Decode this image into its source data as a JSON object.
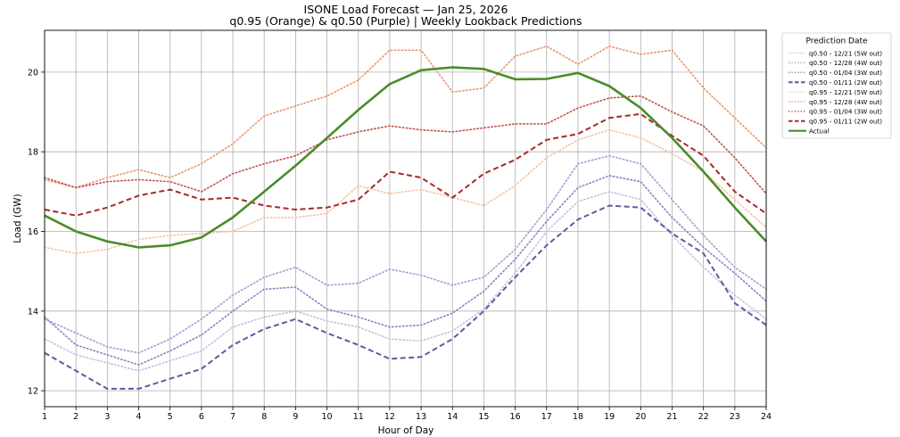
{
  "chart_data": {
    "type": "line",
    "title": "ISONE Load Forecast — Jan 25, 2026",
    "subtitle": "q0.95 (Orange) & q0.50 (Purple) | Weekly Lookback Predictions",
    "xlabel": "Hour of Day",
    "ylabel": "Load (GW)",
    "x": [
      1,
      2,
      3,
      4,
      5,
      6,
      7,
      8,
      9,
      10,
      11,
      12,
      13,
      14,
      15,
      16,
      17,
      18,
      19,
      20,
      21,
      22,
      23,
      24
    ],
    "xlim": [
      1,
      24
    ],
    "ylim": [
      11.6,
      21.05
    ],
    "yticks": [
      12,
      14,
      16,
      18,
      20
    ],
    "grid": true,
    "legend_title": "Prediction Date",
    "legend_position": "outside-right-top",
    "series": [
      {
        "name": "q0.50 - 12/21 (5W out)",
        "color": "#c8bde0",
        "dash": "dotted",
        "width": 1.6,
        "values": [
          13.3,
          12.9,
          12.7,
          12.5,
          12.75,
          13.0,
          13.6,
          13.85,
          14.0,
          13.75,
          13.6,
          13.3,
          13.25,
          13.5,
          14.05,
          14.95,
          16.0,
          16.75,
          17.0,
          16.8,
          15.9,
          15.1,
          14.4,
          13.8
        ]
      },
      {
        "name": "q0.50 - 12/28 (4W out)",
        "color": "#a79ccf",
        "dash": "dotted",
        "width": 1.6,
        "values": [
          13.8,
          13.45,
          13.1,
          12.95,
          13.3,
          13.8,
          14.4,
          14.85,
          15.1,
          14.65,
          14.7,
          15.05,
          14.9,
          14.65,
          14.85,
          15.55,
          16.55,
          17.7,
          17.9,
          17.7,
          16.8,
          15.9,
          15.1,
          14.55
        ]
      },
      {
        "name": "q0.50 - 01/04 (3W out)",
        "color": "#8f7fc2",
        "dash": "dotted",
        "width": 1.6,
        "values": [
          13.85,
          13.15,
          12.9,
          12.65,
          13.0,
          13.4,
          14.0,
          14.55,
          14.6,
          14.05,
          13.85,
          13.6,
          13.65,
          13.95,
          14.5,
          15.3,
          16.25,
          17.1,
          17.4,
          17.25,
          16.35,
          15.6,
          14.95,
          14.25
        ]
      },
      {
        "name": "q0.50 - 01/11 (2W out)",
        "color": "#6a549e",
        "dash": "dashed",
        "width": 2.0,
        "values": [
          12.95,
          12.5,
          12.05,
          12.05,
          12.3,
          12.55,
          13.15,
          13.55,
          13.8,
          13.45,
          13.15,
          12.8,
          12.85,
          13.3,
          14.0,
          14.85,
          15.65,
          16.3,
          16.65,
          16.6,
          15.95,
          15.45,
          14.2,
          13.65
        ]
      },
      {
        "name": "q0.95 - 12/21 (5W out)",
        "color": "#f2c4a0",
        "dash": "dotted",
        "width": 1.6,
        "values": [
          15.6,
          15.45,
          15.55,
          15.8,
          15.9,
          15.95,
          16.0,
          16.35,
          16.35,
          16.45,
          17.15,
          16.95,
          17.05,
          16.85,
          16.65,
          17.15,
          17.85,
          18.3,
          18.55,
          18.35,
          17.95,
          17.5,
          16.8,
          16.1
        ]
      },
      {
        "name": "q0.95 - 12/28 (4W out)",
        "color": "#e8956c",
        "dash": "dotted",
        "width": 1.6,
        "values": [
          17.3,
          17.1,
          17.35,
          17.55,
          17.35,
          17.7,
          18.2,
          18.9,
          19.15,
          19.4,
          19.8,
          20.55,
          20.55,
          19.5,
          19.6,
          20.4,
          20.65,
          20.2,
          20.65,
          20.45,
          20.55,
          19.6,
          18.85,
          18.1
        ]
      },
      {
        "name": "q0.95 - 01/04 (3W out)",
        "color": "#c0504d",
        "dash": "dotted",
        "width": 1.6,
        "values": [
          17.35,
          17.1,
          17.25,
          17.3,
          17.25,
          17.0,
          17.45,
          17.7,
          17.9,
          18.3,
          18.5,
          18.65,
          18.55,
          18.5,
          18.6,
          18.7,
          18.7,
          19.1,
          19.35,
          19.4,
          19.0,
          18.65,
          17.85,
          16.95
        ]
      },
      {
        "name": "q0.95 - 01/11 (2W out)",
        "color": "#a52a2a",
        "dash": "dashed",
        "width": 2.0,
        "values": [
          16.55,
          16.4,
          16.6,
          16.9,
          17.05,
          16.8,
          16.85,
          16.65,
          16.55,
          16.6,
          16.8,
          17.5,
          17.35,
          16.85,
          17.45,
          17.8,
          18.3,
          18.45,
          18.85,
          18.95,
          18.4,
          17.9,
          17.0,
          16.45
        ]
      },
      {
        "name": "Actual",
        "color": "#4a8c2a",
        "dash": "solid",
        "width": 2.6,
        "values": [
          16.4,
          16.0,
          15.75,
          15.6,
          15.65,
          15.85,
          16.35,
          17.0,
          17.65,
          18.35,
          19.05,
          19.7,
          20.05,
          20.12,
          20.08,
          19.82,
          19.83,
          19.98,
          19.65,
          19.1,
          18.35,
          17.5,
          16.6,
          15.75
        ]
      }
    ]
  }
}
